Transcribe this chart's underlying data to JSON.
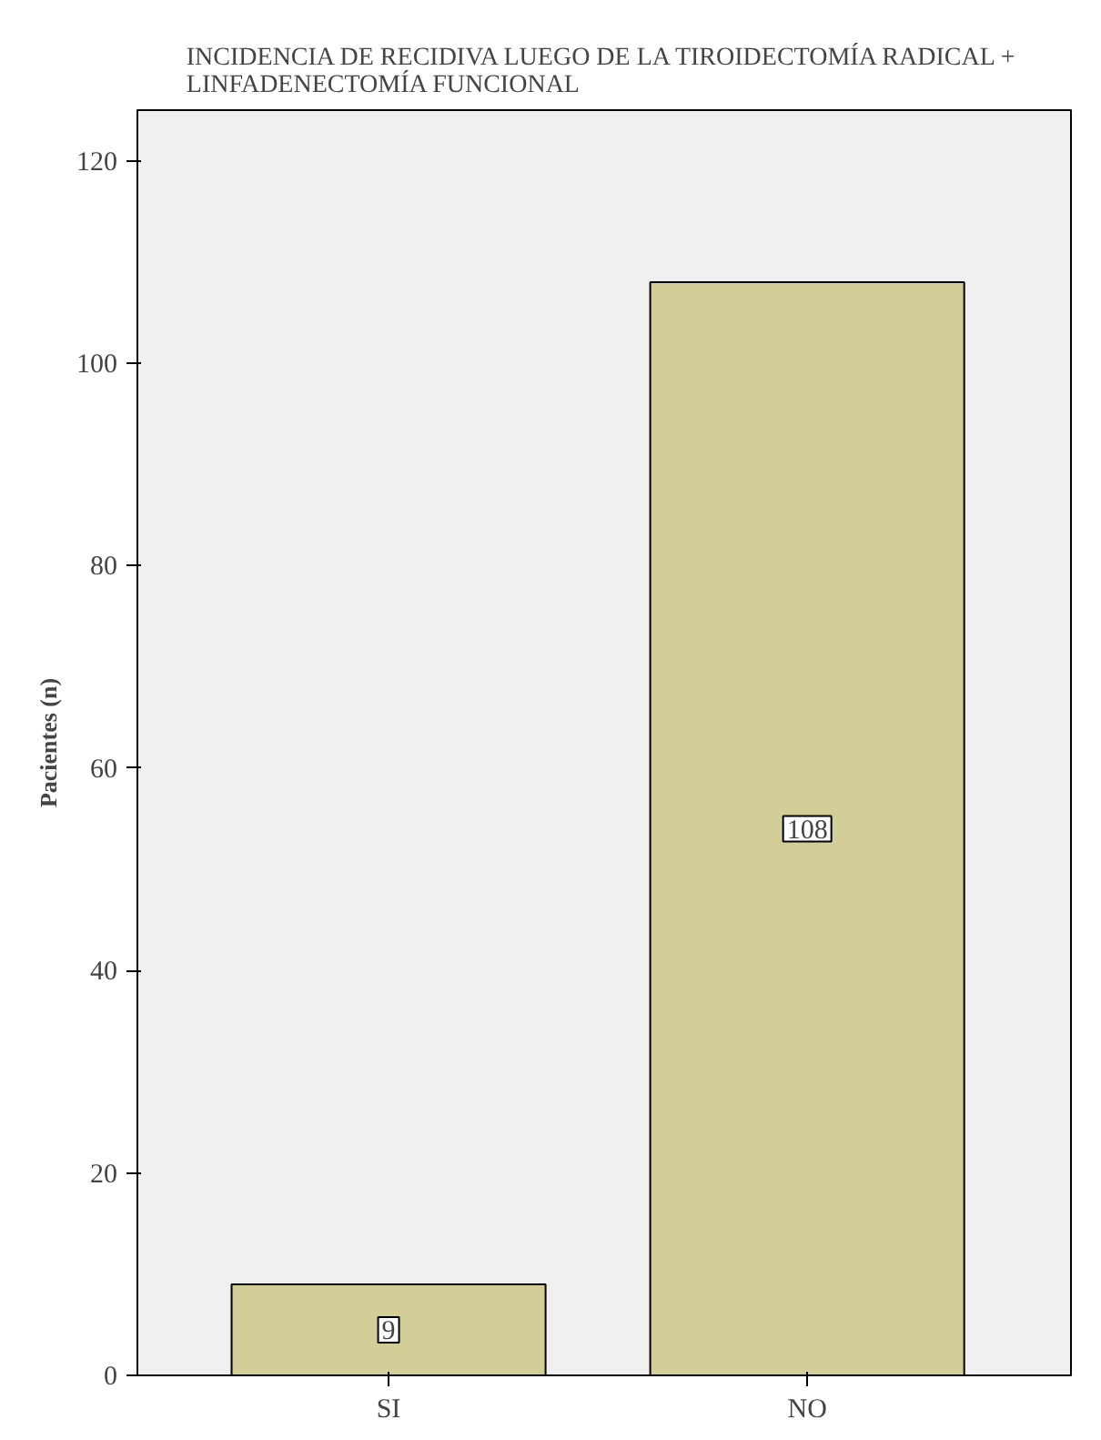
{
  "chart_data": {
    "type": "bar",
    "title": "INCIDENCIA DE RECIDIVA LUEGO DE LA TIROIDECTOMÍA RADICAL +\nLINFADENECTOMÍA FUNCIONAL",
    "ylabel": "Pacientes (n)",
    "categories": [
      "SI",
      "NO"
    ],
    "values": [
      9,
      108
    ],
    "color": "#d3ce97",
    "ylim": [
      0,
      125
    ],
    "yticks": [
      0,
      20,
      40,
      60,
      80,
      100,
      120
    ],
    "grid": false,
    "data_labels": true
  }
}
